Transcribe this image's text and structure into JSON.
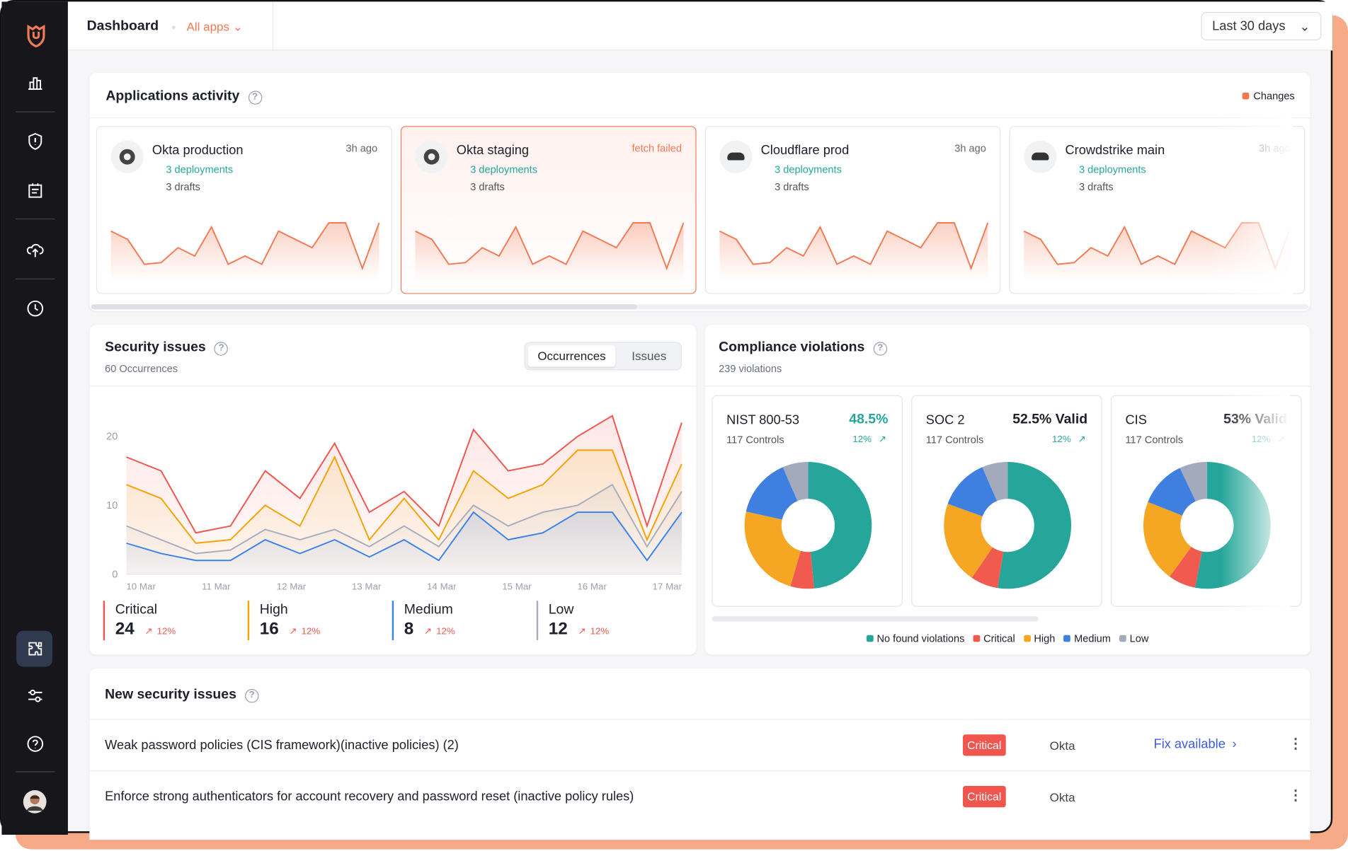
{
  "header": {
    "title": "Dashboard",
    "app_filter": "All apps",
    "date_range": "Last 30 days"
  },
  "activity": {
    "title": "Applications activity",
    "legend": "Changes",
    "color": "#f27a54",
    "cards": [
      {
        "name": "Okta production",
        "status": "3h ago",
        "deployments": "3 deployments",
        "drafts": "3 drafts",
        "values": [
          5,
          4,
          1,
          1.2,
          3,
          2,
          5.5,
          1,
          2,
          1,
          5,
          4,
          3,
          6,
          6,
          0.5,
          6
        ]
      },
      {
        "name": "Okta staging",
        "status": "fetch failed",
        "deployments": "3 deployments",
        "drafts": "3 drafts",
        "values": [
          5,
          4,
          1,
          1.2,
          3,
          2,
          5.5,
          1,
          2,
          1,
          5,
          4,
          3,
          6,
          6,
          0.5,
          6
        ]
      },
      {
        "name": "Cloudflare prod",
        "status": "3h ago",
        "deployments": "3 deployments",
        "drafts": "3 drafts",
        "values": [
          5,
          4,
          1,
          1.2,
          3,
          2,
          5.5,
          1,
          2,
          1,
          5,
          4,
          3,
          6,
          6,
          0.5,
          6
        ]
      },
      {
        "name": "Crowdstrike main",
        "status": "3h ago",
        "deployments": "3 deployments",
        "drafts": "3 drafts",
        "values": [
          5,
          4,
          1,
          1.2,
          3,
          2,
          5.5,
          1,
          2,
          1,
          5,
          4,
          3,
          6,
          6,
          0.5,
          6
        ]
      }
    ]
  },
  "security": {
    "title": "Security issues",
    "subtitle": "60 Occurrences",
    "tabs": [
      "Occurrences",
      "Issues"
    ],
    "chart_data": {
      "type": "line",
      "xticks": [
        "10 Mar",
        "11 Mar",
        "12 Mar",
        "13 Mar",
        "14 Mar",
        "15 Mar",
        "16 Mar",
        "17 Mar"
      ],
      "ylim": [
        0,
        25
      ],
      "yticks": [
        0,
        10,
        20
      ],
      "grid": false,
      "series": [
        {
          "name": "Critical",
          "color": "#f0554e",
          "values": [
            17,
            15,
            6,
            7,
            15,
            11,
            19,
            9,
            12,
            7,
            21,
            15,
            16,
            20,
            23,
            7,
            22
          ]
        },
        {
          "name": "High",
          "color": "#f5a300",
          "values": [
            13,
            11,
            4.5,
            5,
            10,
            7,
            17,
            5,
            11,
            5,
            15,
            11,
            13,
            18,
            18,
            5,
            16
          ]
        },
        {
          "name": "Low",
          "color": "#a7adbc",
          "values": [
            7,
            5,
            3,
            3.5,
            6.5,
            5,
            6.5,
            4,
            7,
            4,
            10,
            7,
            9,
            10,
            13,
            4,
            12
          ]
        },
        {
          "name": "Medium",
          "color": "#3b82e6",
          "values": [
            4.5,
            3,
            2,
            2,
            5,
            3,
            5,
            2.5,
            5,
            2,
            9,
            5,
            6,
            9,
            9,
            2,
            9
          ]
        }
      ]
    },
    "summary": [
      {
        "name": "Critical",
        "value": 24,
        "change": "12%",
        "color": "#f0554e"
      },
      {
        "name": "High",
        "value": 16,
        "change": "12%",
        "color": "#f5a300"
      },
      {
        "name": "Medium",
        "value": 8,
        "change": "12%",
        "color": "#3b82e6"
      },
      {
        "name": "Low",
        "value": 12,
        "change": "12%",
        "color": "#a7adbc"
      }
    ]
  },
  "compliance": {
    "title": "Compliance violations",
    "subtitle": "239 violations",
    "legend": [
      {
        "name": "No found violations",
        "color": "#26a69a"
      },
      {
        "name": "Critical",
        "color": "#f05a4f"
      },
      {
        "name": "High",
        "color": "#f5a623"
      },
      {
        "name": "Medium",
        "color": "#3f7fe0"
      },
      {
        "name": "Low",
        "color": "#a2aabb"
      }
    ],
    "cards": [
      {
        "name": "NIST 800-53",
        "score": "48.5%",
        "controls": "117 Controls",
        "change": "12%",
        "chart_data": {
          "type": "pie",
          "values": [
            48.5,
            6,
            24,
            15,
            6.5
          ]
        }
      },
      {
        "name": "SOC 2",
        "score": "52.5% Valid",
        "controls": "117 Controls",
        "change": "12%",
        "chart_data": {
          "type": "pie",
          "values": [
            52.5,
            7,
            21,
            13,
            6.5
          ]
        }
      },
      {
        "name": "CIS",
        "score": "53% Valid",
        "controls": "117 Controls",
        "change": "12%",
        "chart_data": {
          "type": "pie",
          "values": [
            53,
            7,
            21,
            12,
            7
          ]
        }
      }
    ]
  },
  "issues": {
    "title": "New security issues",
    "rows": [
      {
        "title": "Weak password policies (CIS framework)(inactive policies) (2)",
        "severity": "Critical",
        "app": "Okta",
        "action": "Fix available"
      },
      {
        "title": "Enforce strong authenticators for account recovery and password reset (inactive policy rules)",
        "severity": "Critical",
        "app": "Okta"
      }
    ]
  }
}
